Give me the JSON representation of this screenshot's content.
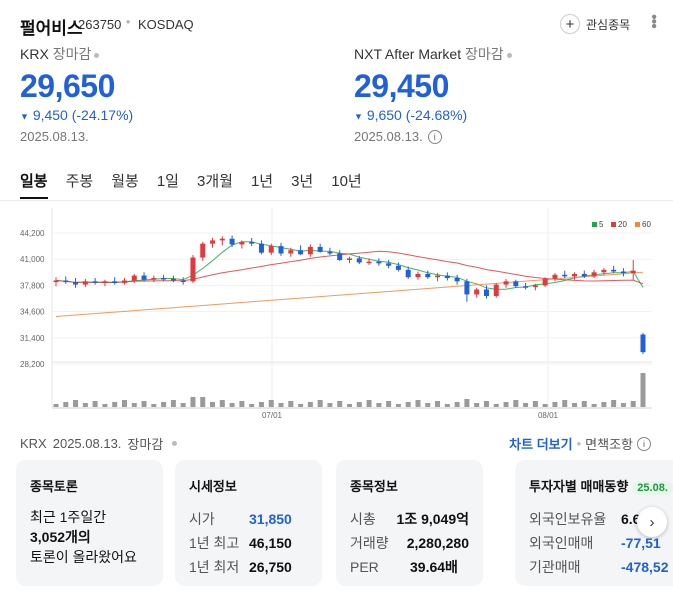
{
  "stock": {
    "name": "펄어비스",
    "code": "263750",
    "market": "KOSDAQ",
    "watch_label": "관심종목"
  },
  "krx": {
    "label": "KRX",
    "status": "장마감",
    "price": "29,650",
    "change": "9,450 (-24.17%)",
    "date": "2025.08.13."
  },
  "nxt": {
    "label": "NXT After Market",
    "status": "장마감",
    "price": "29,450",
    "change": "9,650 (-24.68%)",
    "date": "2025.08.13."
  },
  "periods": [
    "일봉",
    "주봉",
    "월봉",
    "1일",
    "3개월",
    "1년",
    "3년",
    "10년"
  ],
  "active_period": "일봉",
  "chart_data": {
    "type": "candlestick",
    "y_ticks": [
      "44,200",
      "41,000",
      "37,800",
      "34,600",
      "31,400",
      "28,200"
    ],
    "x_ticks": [
      "07/01",
      "08/01"
    ],
    "legend": [
      {
        "label": "5",
        "color": "#1fa84a"
      },
      {
        "label": "20",
        "color": "#e0393e"
      },
      {
        "label": "60",
        "color": "#f08a3c"
      }
    ],
    "up_color": "#e0393e",
    "down_color": "#2060d8"
  },
  "footer": {
    "market": "KRX",
    "date": "2025.08.13.",
    "status": "장마감",
    "chart_more": "차트 더보기",
    "exempt": "면책조항"
  },
  "cards": {
    "talk": {
      "title": "종목토론",
      "line1": "최근 1주일간",
      "line2": "3,052개의",
      "line3": "토론이 올라왔어요"
    },
    "quote": {
      "title": "시세정보",
      "rows": [
        {
          "k": "시가",
          "v": "31,850"
        },
        {
          "k": "1년 최고",
          "v": "46,150"
        },
        {
          "k": "1년 최저",
          "v": "26,750"
        }
      ]
    },
    "info": {
      "title": "종목정보",
      "rows": [
        {
          "k": "시총",
          "v": "1조 9,049억"
        },
        {
          "k": "거래량",
          "v": "2,280,280"
        },
        {
          "k": "PER",
          "v": "39.64배"
        }
      ]
    },
    "investor": {
      "title": "투자자별 매매동향",
      "badge": "25.08.",
      "rows": [
        {
          "k": "외국인보유율",
          "v": "6.6"
        },
        {
          "k": "외국인매매",
          "v": "-77,51"
        },
        {
          "k": "기관매매",
          "v": "-478,52"
        }
      ]
    }
  }
}
